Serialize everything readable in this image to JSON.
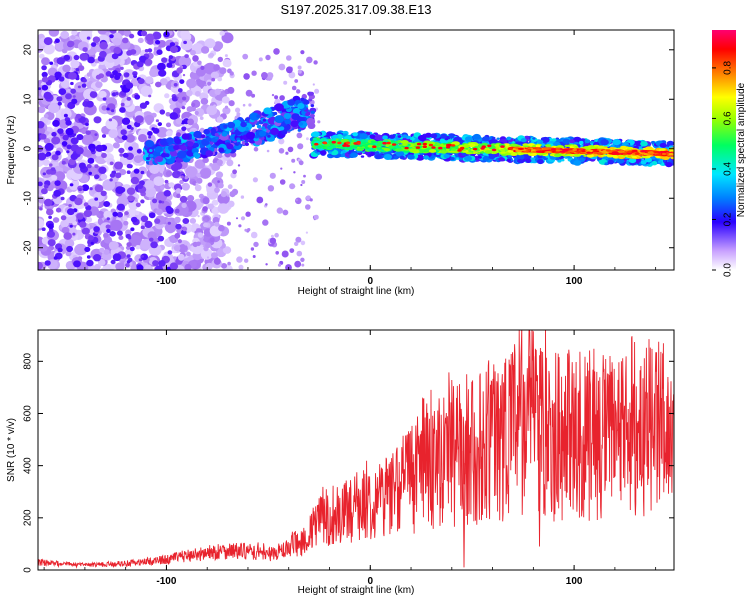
{
  "title": "S197.2025.317.09.38.E13",
  "colors": {
    "snr_line": "#e8232d",
    "axes": "#000000",
    "speckle": "#8a2be2"
  },
  "chart_data": [
    {
      "type": "heatmap",
      "title": "S197.2025.317.09.38.E13",
      "xlabel": "Height of straight line (km)",
      "ylabel": "Frequency (Hz)",
      "xlim": [
        -163,
        149
      ],
      "ylim": [
        -24.5,
        24
      ],
      "xticks": [
        -100,
        0,
        100
      ],
      "xtick_labels": [
        "-100",
        "0",
        "100"
      ],
      "yticks": [
        -20,
        -10,
        0,
        10,
        20
      ],
      "ytick_labels": [
        "-20",
        "-10",
        "0",
        "10",
        "20"
      ],
      "colorbar": {
        "label": "Normalized spectral amplitude",
        "range": [
          0,
          0.95
        ],
        "ticks": [
          0.0,
          0.2,
          0.4,
          0.6,
          0.8
        ],
        "tick_labels": [
          "0.0",
          "0.2",
          "0.4",
          "0.6",
          "0.8"
        ],
        "colormap": "rainbow (white-violet-blue-cyan-green-yellow-orange-red-magenta)"
      },
      "features": [
        {
          "name": "noise-region",
          "x_range": [
            -163,
            -90
          ],
          "freq_range": [
            -24.5,
            24
          ],
          "amplitude_range": [
            0.05,
            0.15
          ]
        },
        {
          "name": "rising-trace",
          "x_range": [
            -110,
            -28
          ],
          "freq_start": -1,
          "freq_end": 8,
          "amplitude_range": [
            0.1,
            0.35
          ]
        },
        {
          "name": "tail-trace",
          "x_range": [
            -28,
            149
          ],
          "freq_start": 1,
          "freq_end": -1,
          "amplitude_range": [
            0.3,
            0.9
          ]
        }
      ]
    },
    {
      "type": "line",
      "xlabel": "Height of straight line (km)",
      "ylabel": "SNR (10 * v/v)",
      "xlim": [
        -163,
        149
      ],
      "ylim": [
        0,
        920
      ],
      "xticks": [
        -100,
        0,
        100
      ],
      "xtick_labels": [
        "-100",
        "0",
        "100"
      ],
      "yticks": [
        0,
        200,
        400,
        600,
        800
      ],
      "ytick_labels": [
        "0",
        "200",
        "400",
        "600",
        "800"
      ],
      "series": [
        {
          "name": "SNR",
          "x": [
            -163,
            -150,
            -140,
            -130,
            -120,
            -110,
            -100,
            -90,
            -80,
            -70,
            -60,
            -50,
            -40,
            -30,
            -25,
            -20,
            -10,
            0,
            10,
            20,
            30,
            40,
            50,
            60,
            70,
            80,
            90,
            100,
            110,
            120,
            130,
            140,
            149
          ],
          "values": [
            30,
            22,
            18,
            22,
            25,
            32,
            40,
            55,
            65,
            75,
            70,
            60,
            80,
            130,
            200,
            190,
            230,
            260,
            300,
            370,
            420,
            450,
            460,
            500,
            560,
            600,
            520,
            530,
            520,
            500,
            560,
            540,
            510
          ],
          "peaks": [
            {
              "x": 80,
              "value": 915
            },
            {
              "x": 78,
              "value": 820
            },
            {
              "x": 146,
              "value": 740
            },
            {
              "x": 115,
              "value": 730
            },
            {
              "x": 46,
              "value": 10
            },
            {
              "x": 83,
              "value": 90
            }
          ]
        }
      ]
    }
  ]
}
